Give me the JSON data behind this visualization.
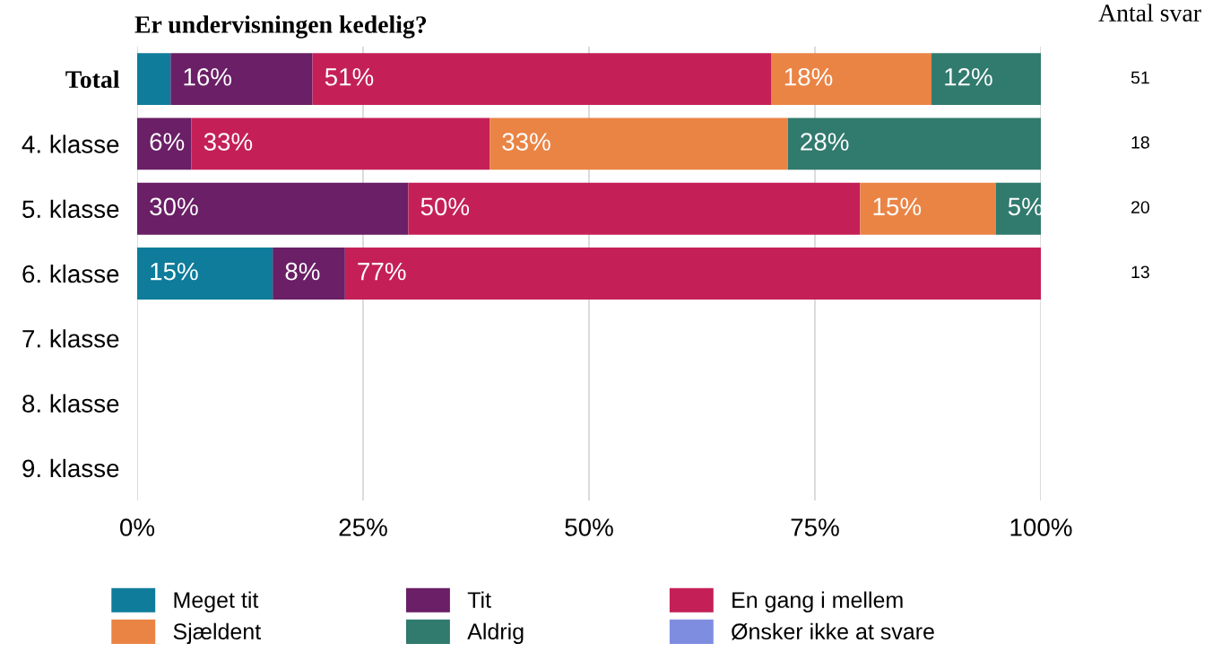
{
  "chart_data": {
    "type": "bar",
    "orientation": "horizontal",
    "stacked": true,
    "title": "Er undervisningen kedelig?",
    "categories": [
      "Total",
      "4. klasse",
      "5. klasse",
      "6. klasse",
      "7. klasse",
      "8. klasse",
      "9. klasse"
    ],
    "series": [
      {
        "name": "Meget tit",
        "color": "#0e7c9a",
        "values": [
          3.7,
          null,
          null,
          15,
          null,
          null,
          null
        ],
        "value_labels": [
          null,
          null,
          null,
          "15%",
          null,
          null,
          null
        ]
      },
      {
        "name": "Tit",
        "color": "#6a1f66",
        "values": [
          15.7,
          6,
          30,
          8,
          null,
          null,
          null
        ],
        "value_labels": [
          "16%",
          "6%",
          "30%",
          "8%",
          null,
          null,
          null
        ]
      },
      {
        "name": "En gang i mellem",
        "color": "#c42057",
        "values": [
          50.8,
          33,
          50,
          77,
          null,
          null,
          null
        ],
        "value_labels": [
          "51%",
          "33%",
          "50%",
          "77%",
          null,
          null,
          null
        ]
      },
      {
        "name": "Sjældent",
        "color": "#ea8445",
        "values": [
          17.7,
          33,
          15,
          null,
          null,
          null,
          null
        ],
        "value_labels": [
          "18%",
          "33%",
          "15%",
          null,
          null,
          null,
          null
        ]
      },
      {
        "name": "Aldrig",
        "color": "#317a6e",
        "values": [
          12.1,
          28,
          5,
          null,
          null,
          null,
          null
        ],
        "value_labels": [
          "12%",
          "28%",
          "5%",
          null,
          null,
          null,
          null
        ]
      },
      {
        "name": "Ønsker ikke at svare",
        "color": "#7f8de0",
        "values": [
          null,
          null,
          null,
          null,
          null,
          null,
          null
        ],
        "value_labels": [
          null,
          null,
          null,
          null,
          null,
          null,
          null
        ]
      }
    ],
    "xlim": [
      0,
      100
    ],
    "xticks": [
      {
        "value": 0,
        "label": "0%"
      },
      {
        "value": 25,
        "label": "25%"
      },
      {
        "value": 50,
        "label": "50%"
      },
      {
        "value": 75,
        "label": "75%"
      },
      {
        "value": 100,
        "label": "100%"
      }
    ],
    "grid": "x",
    "legend": "bottom",
    "annotations": [
      "Antal svar",
      "51",
      "18",
      "20",
      "13"
    ]
  }
}
